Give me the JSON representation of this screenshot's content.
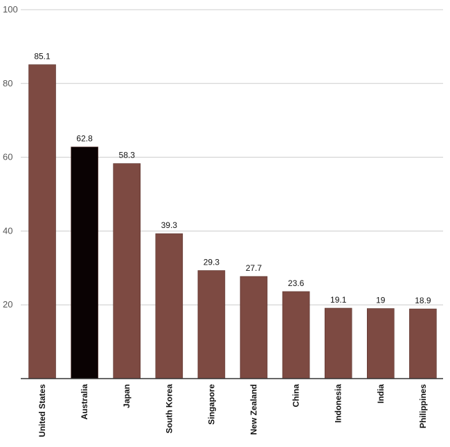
{
  "chart_data": {
    "type": "bar",
    "categories": [
      "United States",
      "Australia",
      "Japan",
      "South Korea",
      "Singapore",
      "New Zealand",
      "China",
      "Indonesia",
      "India",
      "Philippines"
    ],
    "values": [
      85.1,
      62.8,
      58.3,
      39.3,
      29.3,
      27.7,
      23.6,
      19.1,
      19,
      18.9
    ],
    "value_labels": [
      "85.1",
      "62.8",
      "58.3",
      "39.3",
      "29.3",
      "27.7",
      "23.6",
      "19.1",
      "19",
      "18.9"
    ],
    "highlight_category": "Australia",
    "colors": {
      "bar": "#7d4a42",
      "highlight": "#0a0203",
      "grid": "#cccccc",
      "axis": "#333333"
    },
    "ylim": [
      0,
      100
    ],
    "yticks": [
      20,
      40,
      60,
      80,
      100
    ],
    "grid": true,
    "legend": "none"
  }
}
